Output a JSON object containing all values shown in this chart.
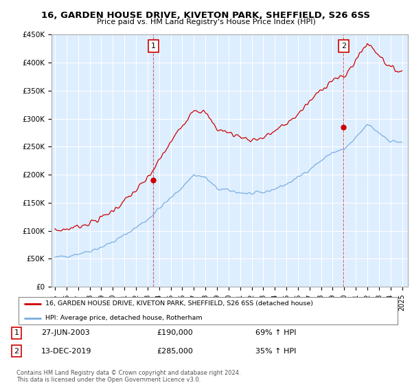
{
  "title": "16, GARDEN HOUSE DRIVE, KIVETON PARK, SHEFFIELD, S26 6SS",
  "subtitle": "Price paid vs. HM Land Registry's House Price Index (HPI)",
  "ylim": [
    0,
    450000
  ],
  "yticks": [
    0,
    50000,
    100000,
    150000,
    200000,
    250000,
    300000,
    350000,
    400000,
    450000
  ],
  "ytick_labels": [
    "£0",
    "£50K",
    "£100K",
    "£150K",
    "£200K",
    "£250K",
    "£300K",
    "£350K",
    "£400K",
    "£450K"
  ],
  "xlim_start": 1994.7,
  "xlim_end": 2025.5,
  "xtick_years": [
    1995,
    1996,
    1997,
    1998,
    1999,
    2000,
    2001,
    2002,
    2003,
    2004,
    2005,
    2006,
    2007,
    2008,
    2009,
    2010,
    2011,
    2012,
    2013,
    2014,
    2015,
    2016,
    2017,
    2018,
    2019,
    2020,
    2021,
    2022,
    2023,
    2024,
    2025
  ],
  "red_line_color": "#cc0000",
  "blue_line_color": "#7aade0",
  "bg_color": "#ddeeff",
  "marker1_x": 2003.49,
  "marker1_y": 190000,
  "marker2_x": 2019.95,
  "marker2_y": 285000,
  "legend_line1": "16, GARDEN HOUSE DRIVE, KIVETON PARK, SHEFFIELD, S26 6SS (detached house)",
  "legend_line2": "HPI: Average price, detached house, Rotherham",
  "ann1_date": "27-JUN-2003",
  "ann1_price": "£190,000",
  "ann1_hpi": "69% ↑ HPI",
  "ann2_date": "13-DEC-2019",
  "ann2_price": "£285,000",
  "ann2_hpi": "35% ↑ HPI",
  "footer": "Contains HM Land Registry data © Crown copyright and database right 2024.\nThis data is licensed under the Open Government Licence v3.0."
}
